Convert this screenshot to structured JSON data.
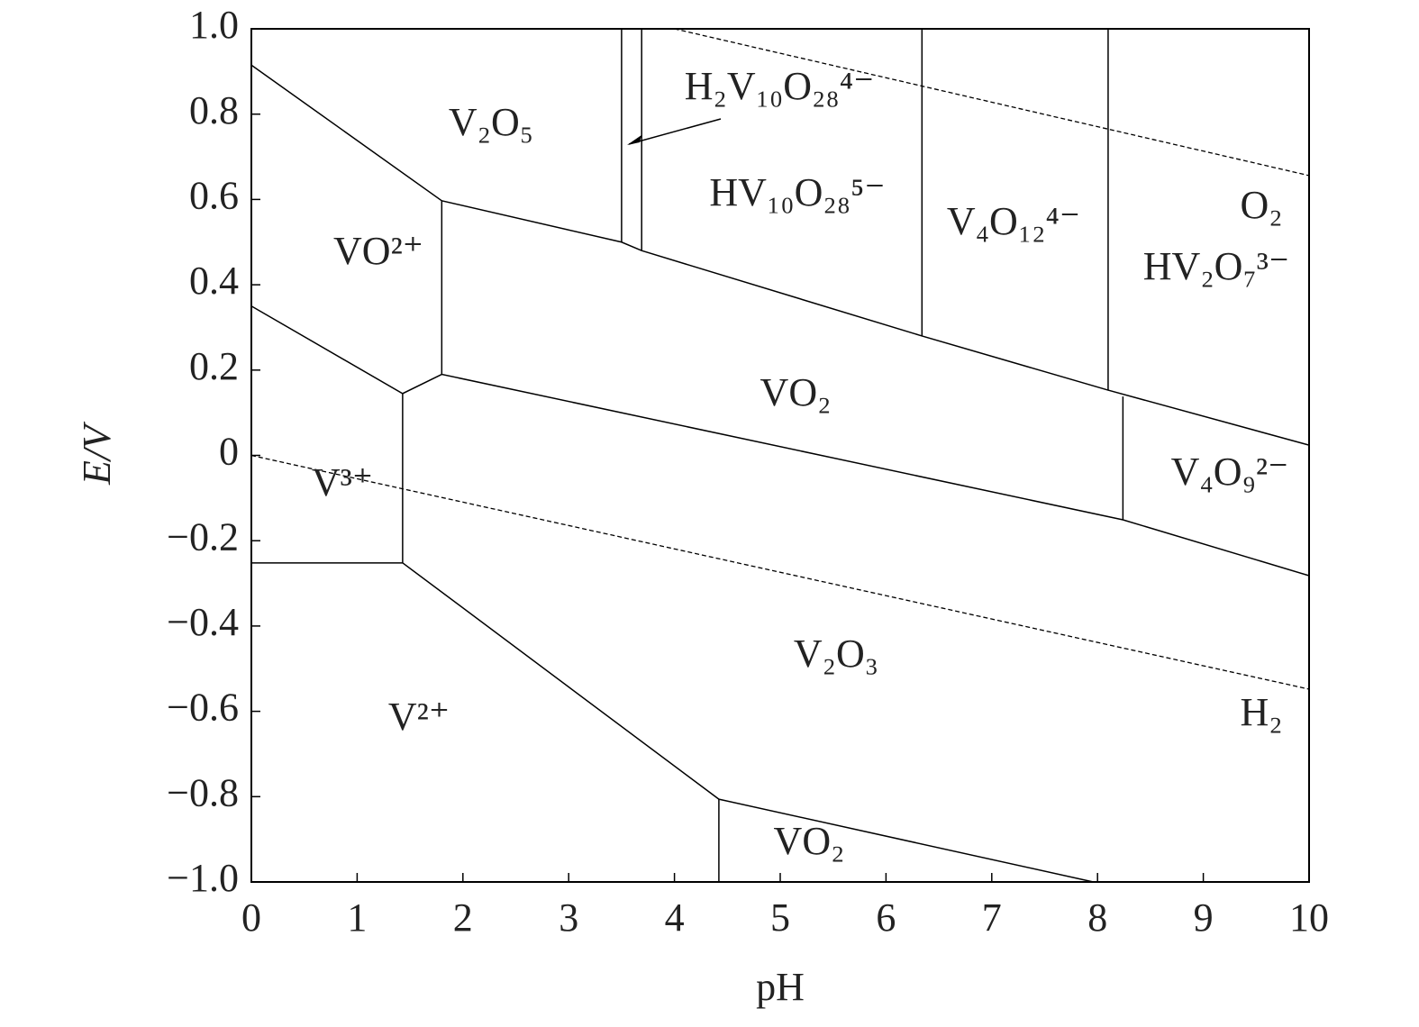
{
  "chart_data": {
    "type": "line",
    "xlabel": "pH",
    "ylabel": "E/V",
    "xlim": [
      0,
      10
    ],
    "ylim": [
      -1.0,
      1.0
    ],
    "xticks": [
      0,
      1,
      2,
      3,
      4,
      5,
      6,
      7,
      8,
      9,
      10
    ],
    "yticks": [
      {
        "value": -1.0,
        "label": "−1.0"
      },
      {
        "value": -0.8,
        "label": "−0.8"
      },
      {
        "value": -0.6,
        "label": "−0.6"
      },
      {
        "value": -0.4,
        "label": "−0.4"
      },
      {
        "value": -0.2,
        "label": "−0.2"
      },
      0,
      {
        "value": 0.2,
        "label": "0.2"
      },
      {
        "value": 0.4,
        "label": "0.4"
      },
      {
        "value": 0.6,
        "label": "0.6"
      },
      {
        "value": 0.8,
        "label": "0.8"
      },
      {
        "value": 1.0,
        "label": "1.0"
      }
    ],
    "series": [
      {
        "color": "#000000",
        "linestyle": "solid",
        "x": [
          0,
          1.8,
          3.5,
          3.69,
          6.34,
          8.1,
          10
        ],
        "values": [
          0.915,
          0.597,
          0.5,
          0.48,
          0.28,
          0.153,
          0.024
        ]
      },
      {
        "color": "#000000",
        "linestyle": "solid",
        "x": [
          0,
          1.43,
          1.8,
          8.24,
          10
        ],
        "values": [
          0.35,
          0.145,
          0.19,
          -0.151,
          -0.282
        ]
      },
      {
        "color": "#000000",
        "linestyle": "solid",
        "x": [
          1.8,
          1.8
        ],
        "values": [
          0.19,
          0.597
        ]
      },
      {
        "color": "#000000",
        "linestyle": "solid",
        "x": [
          1.43,
          1.43
        ],
        "values": [
          -0.252,
          0.145
        ]
      },
      {
        "color": "#000000",
        "linestyle": "solid",
        "x": [
          0,
          1.43
        ],
        "values": [
          -0.252,
          -0.252
        ]
      },
      {
        "color": "#000000",
        "linestyle": "solid",
        "x": [
          1.43,
          4.42,
          7.96
        ],
        "values": [
          -0.252,
          -0.806,
          -1.0
        ]
      },
      {
        "color": "#000000",
        "linestyle": "solid",
        "x": [
          4.42,
          4.42
        ],
        "values": [
          -1.0,
          -0.806
        ]
      },
      {
        "color": "#000000",
        "linestyle": "solid",
        "x": [
          3.5,
          3.5
        ],
        "values": [
          0.5,
          1.0
        ]
      },
      {
        "color": "#000000",
        "linestyle": "solid",
        "x": [
          3.69,
          3.69
        ],
        "values": [
          0.48,
          1.0
        ]
      },
      {
        "color": "#000000",
        "linestyle": "solid",
        "x": [
          6.34,
          6.34
        ],
        "values": [
          0.28,
          1.0
        ]
      },
      {
        "color": "#000000",
        "linestyle": "solid",
        "x": [
          8.1,
          8.1
        ],
        "values": [
          0.153,
          1.0
        ]
      },
      {
        "color": "#000000",
        "linestyle": "solid",
        "x": [
          8.24,
          8.24
        ],
        "values": [
          -0.151,
          0.138
        ]
      },
      {
        "color": "#000000",
        "linestyle": "dashed",
        "x": [
          4.0,
          10
        ],
        "values": [
          1.0,
          0.656
        ]
      },
      {
        "color": "#000000",
        "linestyle": "dashed",
        "x": [
          0,
          10
        ],
        "values": [
          0.0,
          -0.548
        ]
      }
    ],
    "annotations": [
      "V₂O₅",
      "H₂V₁₀O₂₈⁴⁻",
      "HV₁₀O₂₈⁵⁻",
      "V₄O₁₂⁴⁻",
      "O₂",
      "HV₂O₇³⁻",
      "VO²⁺",
      "VO₂",
      "V₄O₉²⁻",
      "V³⁺",
      "V₂O₃",
      "V²⁺",
      "H₂",
      "VO₂"
    ]
  }
}
